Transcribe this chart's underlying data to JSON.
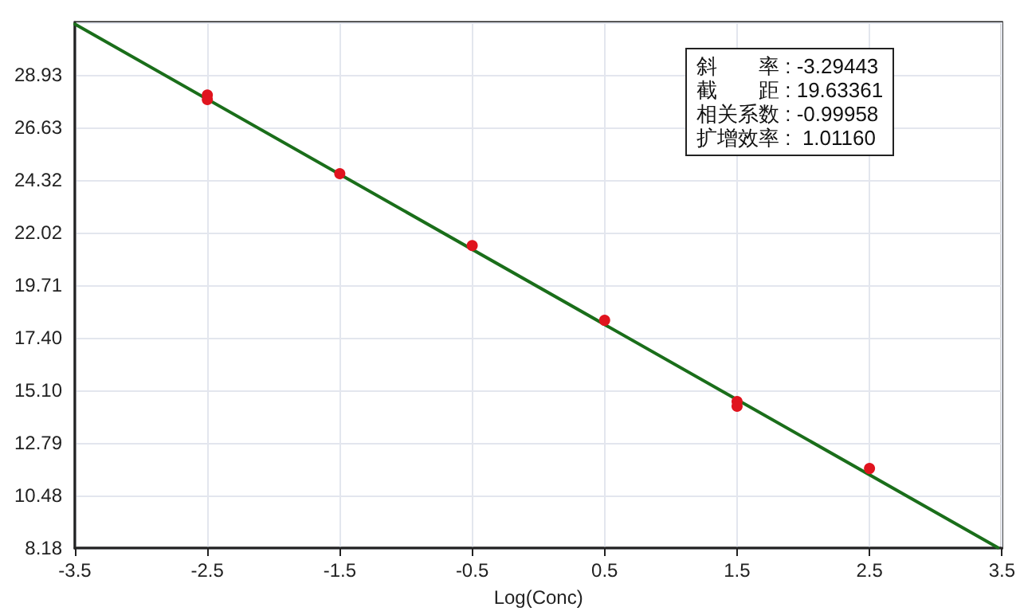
{
  "chart_data": {
    "type": "scatter",
    "xlabel": "Log(Conc)",
    "xlim": [
      -3.5,
      3.5
    ],
    "xticks": [
      -3.5,
      -2.5,
      -1.5,
      -0.5,
      0.5,
      1.5,
      2.5,
      3.5
    ],
    "ylim": [
      8.18,
      31.24
    ],
    "yticks": [
      {
        "value": 8.18,
        "label": "8.18"
      },
      {
        "value": 10.48,
        "label": "10.48"
      },
      {
        "value": 12.79,
        "label": "12.79"
      },
      {
        "value": 15.1,
        "label": "15.10"
      },
      {
        "value": 17.4,
        "label": "17.40"
      },
      {
        "value": 19.71,
        "label": "19.71"
      },
      {
        "value": 22.02,
        "label": "22.02"
      },
      {
        "value": 24.32,
        "label": "24.32"
      },
      {
        "value": 26.63,
        "label": "26.63"
      },
      {
        "value": 28.93,
        "label": "28.93"
      },
      {
        "value": 31.24,
        "label": null
      }
    ],
    "series": [
      {
        "type": "line",
        "color": "#1a6e1a",
        "x": [
          -3.5,
          3.47
        ],
        "values": [
          31.16,
          8.2
        ],
        "marker": "none",
        "line_style": "solid"
      },
      {
        "color": "#e0141e",
        "x": [
          -2.5,
          -2.5,
          -1.5,
          -0.5,
          0.5,
          1.5,
          1.5,
          2.5
        ],
        "values": [
          28.05,
          27.85,
          24.6,
          21.45,
          18.17,
          14.61,
          14.4,
          11.67
        ],
        "marker": "circle"
      }
    ],
    "annotations": [
      "斜　　率 : -3.29443",
      "截　　距 : 19.63361",
      "相关系数 : -0.99958",
      "扩增效率 :  1.01160"
    ],
    "grid": true
  }
}
